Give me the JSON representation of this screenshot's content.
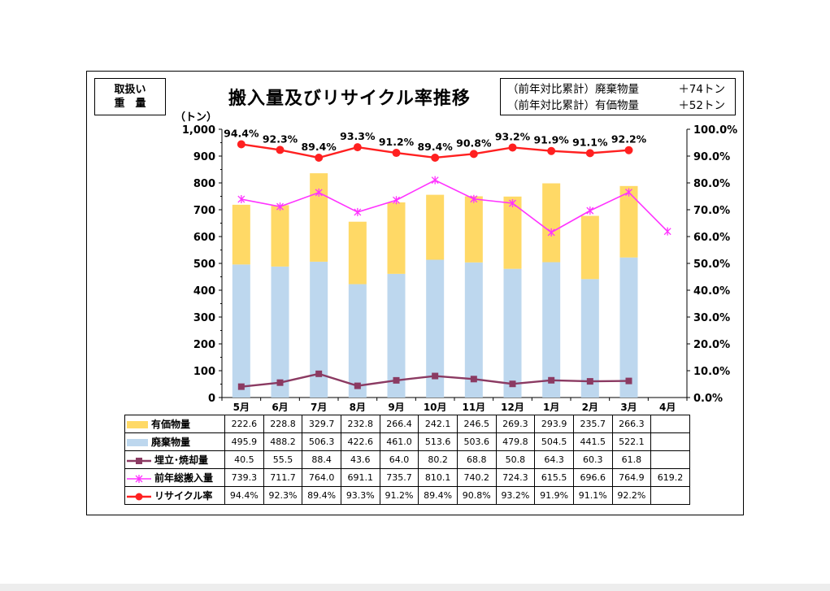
{
  "handling_box": {
    "line1": "取扱い",
    "line2": "重　量"
  },
  "title": "搬入量及びリサイクル率推移",
  "summary": [
    {
      "label": "（前年対比累計）廃棄物量",
      "value": "＋74トン"
    },
    {
      "label": "（前年対比累計）有価物量",
      "value": "＋52トン"
    }
  ],
  "colors": {
    "valuable": "#ffd966",
    "waste": "#bdd7ee",
    "landfill": "#8b3a62",
    "prev_total": "#ff33ff",
    "recycle": "#ff2020"
  },
  "chart_data": {
    "type": "bar",
    "stacked": true,
    "categories": [
      "5月",
      "6月",
      "7月",
      "8月",
      "9月",
      "10月",
      "11月",
      "12月",
      "1月",
      "2月",
      "3月",
      "4月"
    ],
    "y_unit": "（トン）",
    "ylim": [
      0,
      1000
    ],
    "yticks": [
      "0",
      "100",
      "200",
      "300",
      "400",
      "500",
      "600",
      "700",
      "800",
      "900",
      "1,000"
    ],
    "y2lim": [
      0,
      100
    ],
    "y2ticks": [
      "0.0%",
      "10.0%",
      "20.0%",
      "30.0%",
      "40.0%",
      "50.0%",
      "60.0%",
      "70.0%",
      "80.0%",
      "90.0%",
      "100.0%"
    ],
    "grid": false,
    "legend": "table",
    "series": [
      {
        "name": "有価物量",
        "kind": "bar",
        "values": [
          222.6,
          228.8,
          329.7,
          232.8,
          266.4,
          242.1,
          246.5,
          269.3,
          293.9,
          235.7,
          266.3,
          null
        ],
        "labels": [
          "222.6",
          "228.8",
          "329.7",
          "232.8",
          "266.4",
          "242.1",
          "246.5",
          "269.3",
          "293.9",
          "235.7",
          "266.3",
          ""
        ]
      },
      {
        "name": "廃棄物量",
        "kind": "bar",
        "values": [
          495.9,
          488.2,
          506.3,
          422.6,
          461.0,
          513.6,
          503.6,
          479.8,
          504.5,
          441.5,
          522.1,
          null
        ],
        "labels": [
          "495.9",
          "488.2",
          "506.3",
          "422.6",
          "461.0",
          "513.6",
          "503.6",
          "479.8",
          "504.5",
          "441.5",
          "522.1",
          ""
        ]
      },
      {
        "name": "埋立･焼却量",
        "kind": "line",
        "values": [
          40.5,
          55.5,
          88.4,
          43.6,
          64.0,
          80.2,
          68.8,
          50.8,
          64.3,
          60.3,
          61.8,
          null
        ],
        "labels": [
          "40.5",
          "55.5",
          "88.4",
          "43.6",
          "64.0",
          "80.2",
          "68.8",
          "50.8",
          "64.3",
          "60.3",
          "61.8",
          ""
        ]
      },
      {
        "name": "前年総搬入量",
        "kind": "line",
        "values": [
          739.3,
          711.7,
          764.0,
          691.1,
          735.7,
          810.1,
          740.2,
          724.3,
          615.5,
          696.6,
          764.9,
          619.2
        ],
        "labels": [
          "739.3",
          "711.7",
          "764.0",
          "691.1",
          "735.7",
          "810.1",
          "740.2",
          "724.3",
          "615.5",
          "696.6",
          "764.9",
          "619.2"
        ]
      },
      {
        "name": "リサイクル率",
        "kind": "line",
        "axis": "right",
        "values": [
          94.4,
          92.3,
          89.4,
          93.3,
          91.2,
          89.4,
          90.8,
          93.2,
          91.9,
          91.1,
          92.2,
          null
        ],
        "labels": [
          "94.4%",
          "92.3%",
          "89.4%",
          "93.3%",
          "91.2%",
          "89.4%",
          "90.8%",
          "93.2%",
          "91.9%",
          "91.1%",
          "92.2%",
          ""
        ]
      }
    ]
  }
}
